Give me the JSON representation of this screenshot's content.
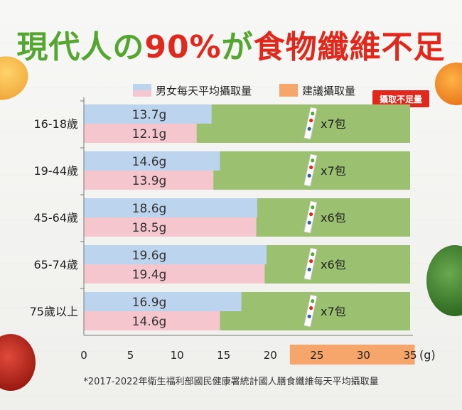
{
  "title": {
    "part1": "現代人の",
    "part2": "90%",
    "part3": "が",
    "part4": "食物纖維不足"
  },
  "footnote": "*2017-2022年衛生福利部國民健康署統計國人膳食纖維每天平均攝取量",
  "unit": "(g)",
  "callout": "攝取不足量",
  "colors": {
    "male_female_avg": "#bdd4ee",
    "female_bar": "#f6c6cf",
    "recommended": "#9bc06f",
    "recommended_legend": "#f6a66b",
    "title_green": "#55a630",
    "title_red": "#e0281c"
  },
  "chart_data": {
    "type": "bar",
    "orientation": "horizontal",
    "categories": [
      "16-18歲",
      "19-44歲",
      "45-64歲",
      "65-74歲",
      "75歲以上"
    ],
    "series": [
      {
        "name": "男女每天平均攝取量",
        "values": [
          13.7,
          14.6,
          18.6,
          19.6,
          16.9
        ],
        "labels": [
          "13.7g",
          "14.6g",
          "18.6g",
          "19.6g",
          "16.9g"
        ]
      },
      {
        "name": "",
        "values": [
          12.1,
          13.9,
          18.5,
          19.4,
          14.6
        ],
        "labels": [
          "12.1g",
          "13.9g",
          "18.5g",
          "19.4g",
          "14.6g"
        ]
      },
      {
        "name": "建議攝取量",
        "values": [
          35,
          35,
          35,
          35,
          35
        ]
      }
    ],
    "packs": [
      "x7包",
      "x7包",
      "x6包",
      "x6包",
      "x7包"
    ],
    "xticks": [
      "0",
      "5",
      "10",
      "15",
      "20",
      "25",
      "30",
      "35"
    ],
    "xlim": [
      0,
      35
    ],
    "legend": "top",
    "grid": false
  }
}
